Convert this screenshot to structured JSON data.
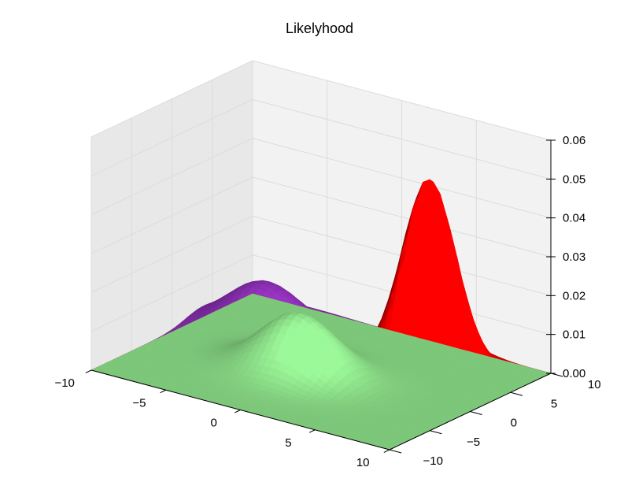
{
  "chart_data": {
    "type": "surface",
    "title": "Likelyhood",
    "xlabel": "",
    "ylabel": "",
    "zlabel": "",
    "x_ticks": [
      "−10",
      "−5",
      "0",
      "5",
      "10"
    ],
    "y_ticks": [
      "−10",
      "−5",
      "0",
      "5",
      "10"
    ],
    "z_ticks": [
      "0.00",
      "0.01",
      "0.02",
      "0.03",
      "0.04",
      "0.05",
      "0.06"
    ],
    "xlim": [
      -10,
      10
    ],
    "ylim": [
      -10,
      10
    ],
    "zlim": [
      0,
      0.06
    ],
    "grid": true,
    "series": [
      {
        "color": "#7b2a9e",
        "peak_x": -6,
        "peak_y": 4,
        "peak_z": 0.013
      },
      {
        "color": "#cc0000",
        "peak_x": 4,
        "peak_y": 6,
        "peak_z": 0.048
      },
      {
        "color": "#7dc77a",
        "peak_x": -1,
        "peak_y": -1,
        "peak_z": 0.015
      }
    ]
  }
}
